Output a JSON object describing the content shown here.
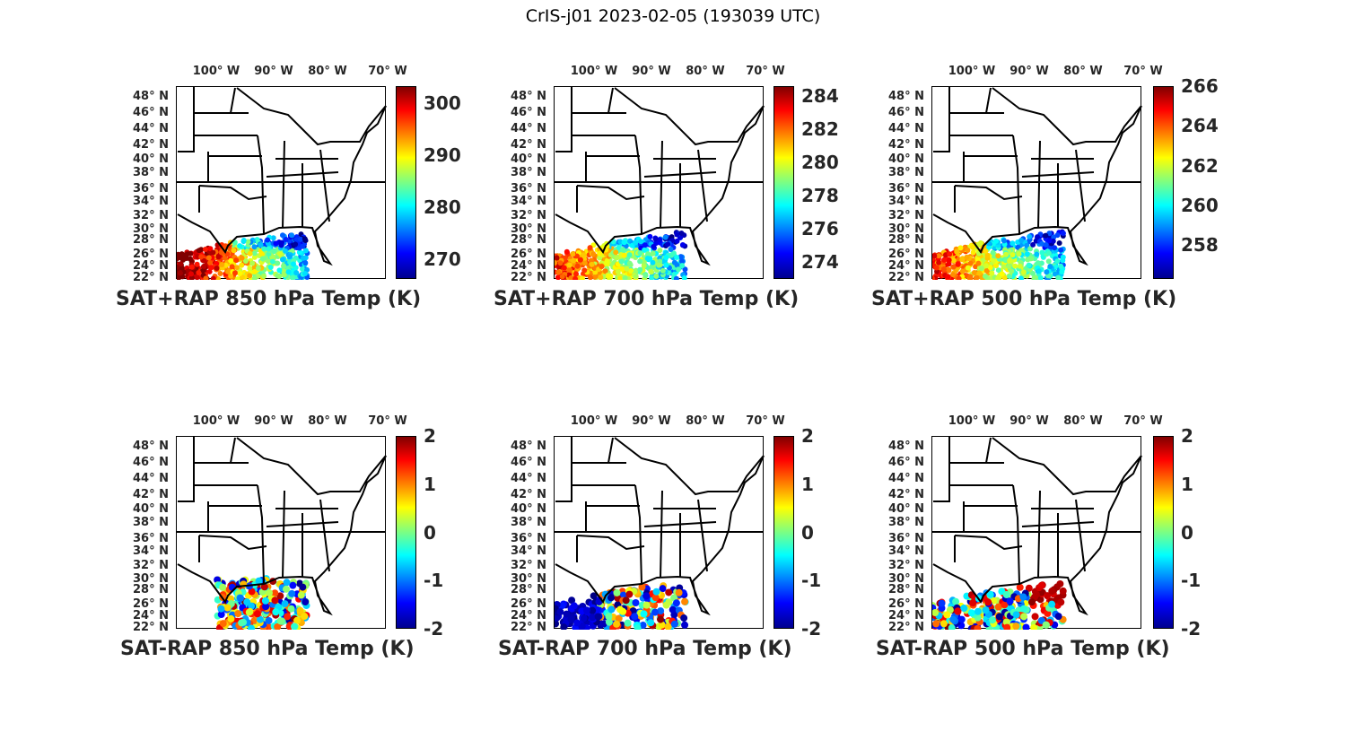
{
  "figure_title": "CrIS-j01 2023-02-05 (193039 UTC)",
  "lat_labels": [
    "48° N",
    "46° N",
    "44° N",
    "42° N",
    "40° N",
    "38° N",
    "36° N",
    "34° N",
    "32° N",
    "30° N",
    "28° N",
    "26° N",
    "24° N",
    "22° N"
  ],
  "lon_labels": [
    "100° W",
    "90° W",
    "80° W",
    "70° W"
  ],
  "panels": [
    {
      "title": "SAT+RAP 850 hPa Temp (K)",
      "kind": "total",
      "clim": [
        266.2,
        303.3
      ],
      "cticks": [
        "270",
        "280",
        "290",
        "300"
      ],
      "cvals": [
        270,
        280,
        290,
        300
      ]
    },
    {
      "title": "SAT+RAP 700 hPa Temp (K)",
      "kind": "total",
      "clim": [
        273.0,
        284.6
      ],
      "cticks": [
        "274",
        "276",
        "278",
        "280",
        "282",
        "284"
      ],
      "cvals": [
        274,
        276,
        278,
        280,
        282,
        284
      ]
    },
    {
      "title": "SAT+RAP 500 hPa Temp (K)",
      "kind": "total",
      "clim": [
        256.3,
        266.0
      ],
      "cticks": [
        "258",
        "260",
        "262",
        "264",
        "266"
      ],
      "cvals": [
        258,
        260,
        262,
        264,
        266
      ]
    },
    {
      "title": "SAT-RAP 850 hPa Temp (K)",
      "kind": "diff",
      "clim": [
        -2,
        2
      ],
      "cticks": [
        "-2",
        "-1",
        "0",
        "1",
        "2"
      ],
      "cvals": [
        -2,
        -1,
        0,
        1,
        2
      ]
    },
    {
      "title": "SAT-RAP 700 hPa Temp (K)",
      "kind": "diff",
      "clim": [
        -2,
        2
      ],
      "cticks": [
        "-2",
        "-1",
        "0",
        "1",
        "2"
      ],
      "cvals": [
        -2,
        -1,
        0,
        1,
        2
      ]
    },
    {
      "title": "SAT-RAP 500 hPa Temp (K)",
      "kind": "diff",
      "clim": [
        -2,
        2
      ],
      "cticks": [
        "-2",
        "-1",
        "0",
        "1",
        "2"
      ],
      "cvals": [
        -2,
        -1,
        0,
        1,
        2
      ]
    }
  ]
}
